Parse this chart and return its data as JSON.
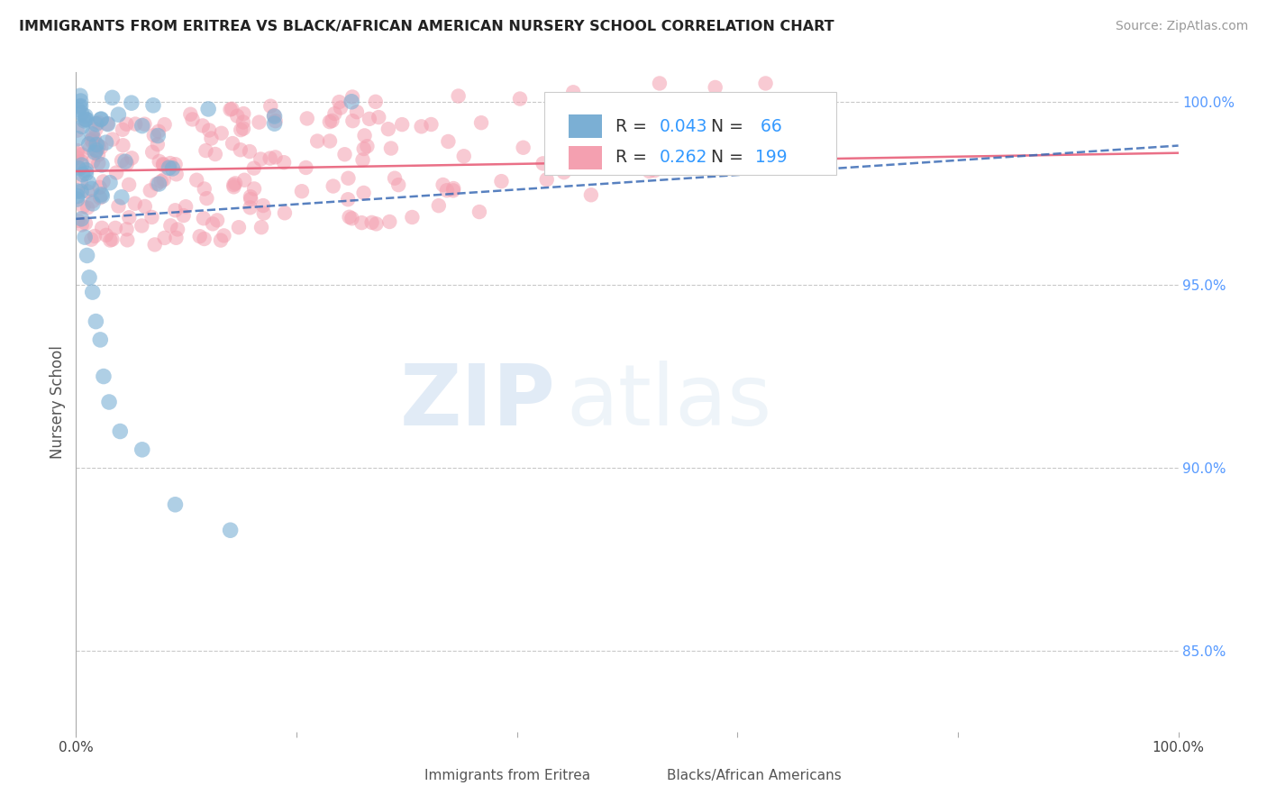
{
  "title": "IMMIGRANTS FROM ERITREA VS BLACK/AFRICAN AMERICAN NURSERY SCHOOL CORRELATION CHART",
  "source": "Source: ZipAtlas.com",
  "ylabel": "Nursery School",
  "xlim": [
    0.0,
    1.0
  ],
  "ylim": [
    0.828,
    1.008
  ],
  "x_ticks": [
    0.0,
    0.2,
    0.4,
    0.6,
    0.8,
    1.0
  ],
  "x_tick_labels": [
    "0.0%",
    "",
    "",
    "",
    "",
    "100.0%"
  ],
  "y_tick_labels_right": [
    "100.0%",
    "95.0%",
    "90.0%",
    "85.0%"
  ],
  "y_ticks_right": [
    1.0,
    0.95,
    0.9,
    0.85
  ],
  "blue_color": "#7BAFD4",
  "pink_color": "#F4A0B0",
  "blue_line_color": "#3B6BB5",
  "pink_line_color": "#E8607A",
  "background_color": "#FFFFFF",
  "watermark_zip": "ZIP",
  "watermark_atlas": "atlas",
  "seed": 42,
  "blue_n": 66,
  "pink_n": 199,
  "blue_R": 0.043,
  "pink_R": 0.262,
  "grid_color": "#BBBBBB",
  "blue_trend_x0": 0.0,
  "blue_trend_x1": 1.0,
  "blue_trend_y0": 0.968,
  "blue_trend_y1": 0.988,
  "pink_trend_y0": 0.981,
  "pink_trend_y1": 0.986
}
